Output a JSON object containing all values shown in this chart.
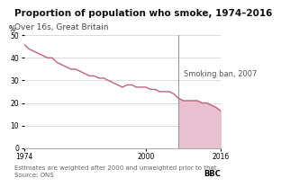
{
  "title": "Proportion of population who smoke, 1974–2016",
  "subtitle": "Over 16s, Great Britain",
  "ylabel": "%",
  "xlabel_notes": "Estimates are weighted after 2000 and unweighted prior to that",
  "source": "Source: ONS",
  "bbc_label": "BBC",
  "ban_year": 2007,
  "ban_label": "Smoking ban, 2007",
  "ylim": [
    0,
    50
  ],
  "xlim": [
    1974,
    2016
  ],
  "yticks": [
    0,
    10,
    20,
    30,
    40,
    50
  ],
  "xticks": [
    1974,
    2000,
    2016
  ],
  "line_color": "#c0607a",
  "fill_color": "#e8c0d0",
  "ban_line_color": "#999999",
  "background_color": "#ffffff",
  "title_fontsize": 7.5,
  "subtitle_fontsize": 6.5,
  "annotation_fontsize": 6,
  "tick_fontsize": 5.5,
  "note_fontsize": 5,
  "years": [
    1974,
    1975,
    1976,
    1977,
    1978,
    1979,
    1980,
    1981,
    1982,
    1983,
    1984,
    1985,
    1986,
    1987,
    1988,
    1989,
    1990,
    1991,
    1992,
    1993,
    1994,
    1995,
    1996,
    1997,
    1998,
    1999,
    2000,
    2001,
    2002,
    2003,
    2004,
    2005,
    2006,
    2007,
    2008,
    2009,
    2010,
    2011,
    2012,
    2013,
    2014,
    2015,
    2016
  ],
  "values": [
    46,
    44,
    43,
    42,
    41,
    40,
    40,
    38,
    37,
    36,
    35,
    35,
    34,
    33,
    32,
    32,
    31,
    31,
    30,
    29,
    28,
    27,
    28,
    28,
    27,
    27,
    27,
    26,
    26,
    25,
    25,
    25,
    24,
    22,
    21,
    21,
    21,
    21,
    20,
    20,
    19,
    18,
    16.5
  ]
}
